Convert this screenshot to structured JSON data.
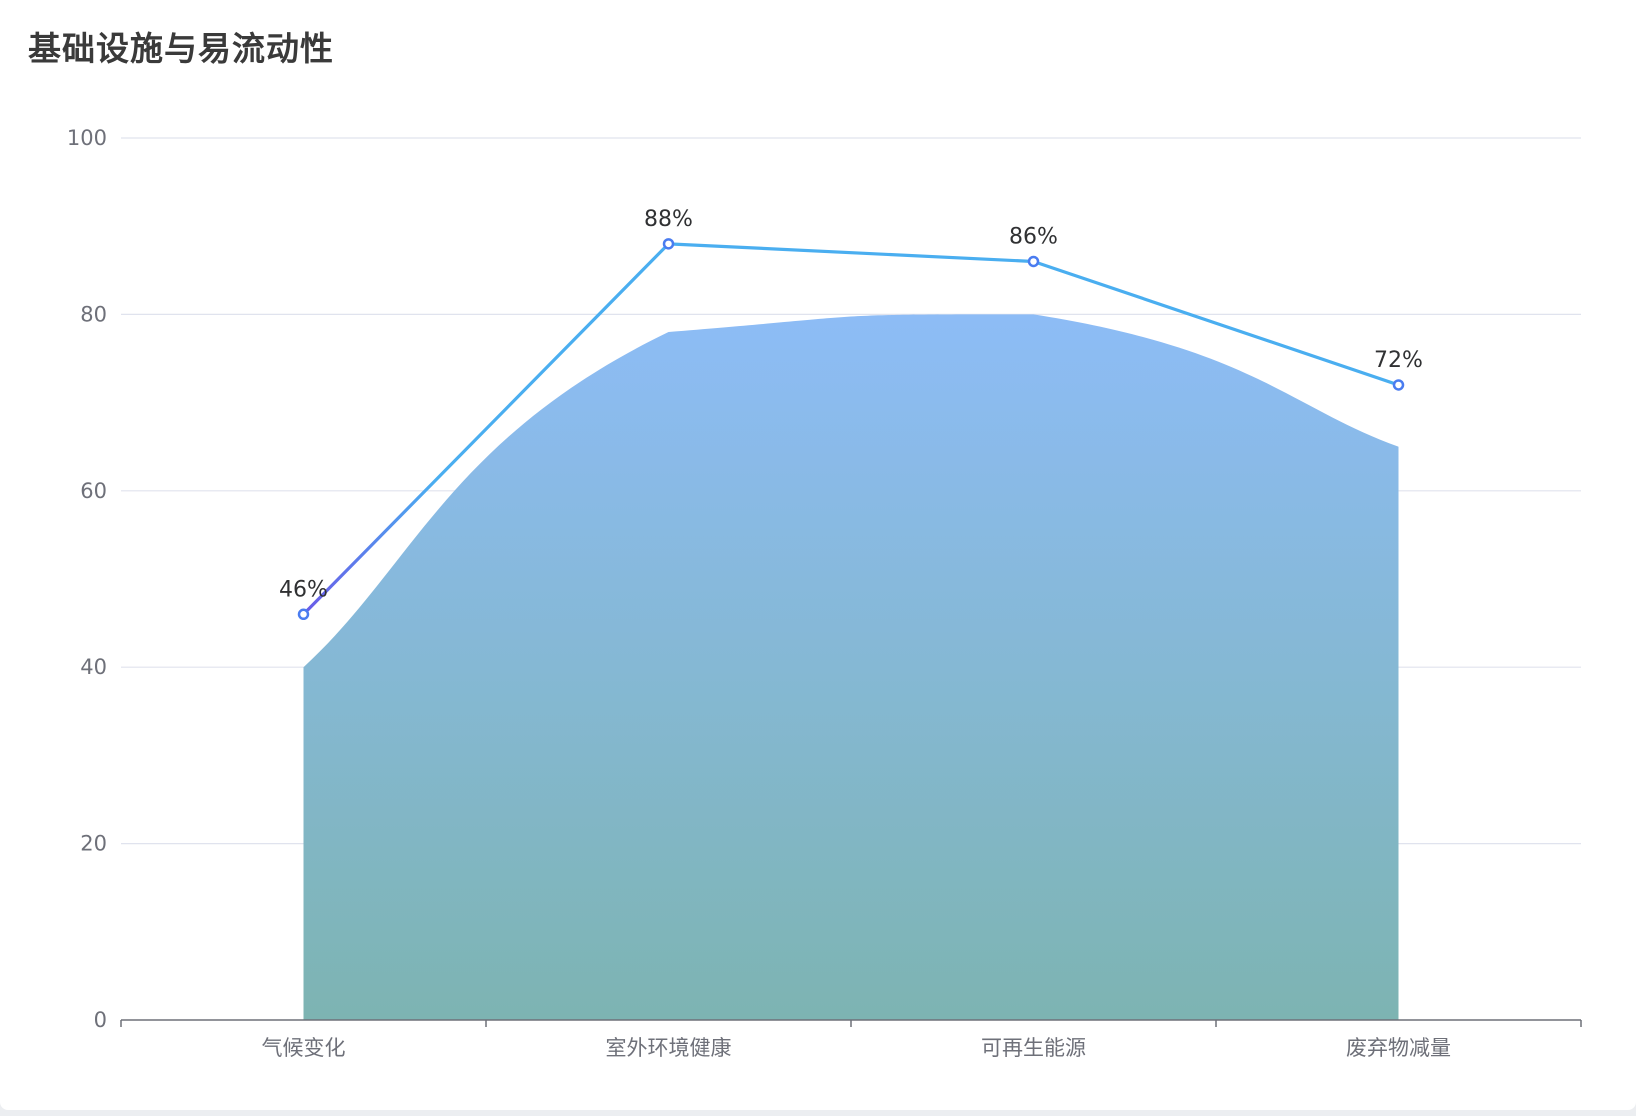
{
  "title": "基础设施与易流动性",
  "chart_data": {
    "type": "line",
    "categories": [
      "气候变化",
      "室外环境健康",
      "可再生能源",
      "废弃物减量"
    ],
    "series": [
      {
        "type": "area",
        "values": [
          40,
          78,
          80,
          65
        ],
        "color_top": "#8dbcf6",
        "color_bottom": "#7db4b2"
      },
      {
        "type": "line",
        "values": [
          46,
          88,
          86,
          72
        ],
        "labels": [
          "46%",
          "88%",
          "86%",
          "72%"
        ],
        "color": "#4aaef0",
        "color_start": "#6a5ae8",
        "marker_color": "#4a7cf0"
      }
    ],
    "y_ticks": [
      0,
      20,
      40,
      60,
      80,
      100
    ],
    "ylim": [
      0,
      100
    ],
    "grid": true,
    "legend": "none"
  }
}
